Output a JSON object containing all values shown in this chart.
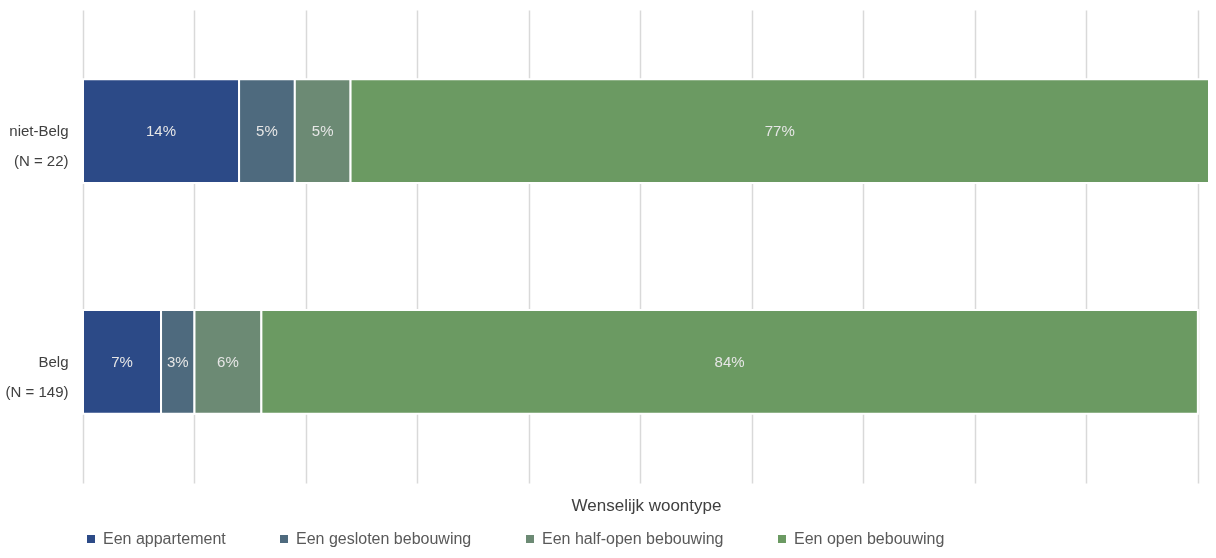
{
  "chart_data": {
    "type": "bar",
    "orientation": "horizontal",
    "stacked": true,
    "xlabel": "Wenselijk  woontype",
    "categories": [
      "niet-Belg\n(N = 22)",
      "Belg\n(N = 149)"
    ],
    "series": [
      {
        "name": "Een appartement",
        "color": "#2c4a87",
        "values": [
          14,
          7
        ],
        "value_labels": [
          "14%",
          "7%"
        ]
      },
      {
        "name": "Een gesloten bebouwing",
        "color": "#4e6a7e",
        "values": [
          5,
          3
        ],
        "value_labels": [
          "5%",
          "3%"
        ]
      },
      {
        "name": "Een half-open bebouwing",
        "color": "#6c8a74",
        "values": [
          5,
          6
        ],
        "value_labels": [
          "5%",
          "6%"
        ]
      },
      {
        "name": "Een open bebouwing",
        "color": "#6b9a62",
        "values": [
          77,
          84
        ],
        "value_labels": [
          "77%",
          "84%"
        ]
      }
    ],
    "xlim": [
      0,
      101
    ],
    "xticks": [
      {
        "value": 0,
        "label": null
      },
      {
        "value": 10,
        "label": null
      },
      {
        "value": 20,
        "label": null
      },
      {
        "value": 30,
        "label": null
      },
      {
        "value": 40,
        "label": null
      },
      {
        "value": 50,
        "label": null
      },
      {
        "value": 60,
        "label": null
      },
      {
        "value": 70,
        "label": null
      },
      {
        "value": 80,
        "label": null
      },
      {
        "value": 90,
        "label": null
      },
      {
        "value": 100,
        "label": null
      }
    ],
    "tick_labels": "y",
    "grid": "x",
    "legend": "bottom"
  }
}
